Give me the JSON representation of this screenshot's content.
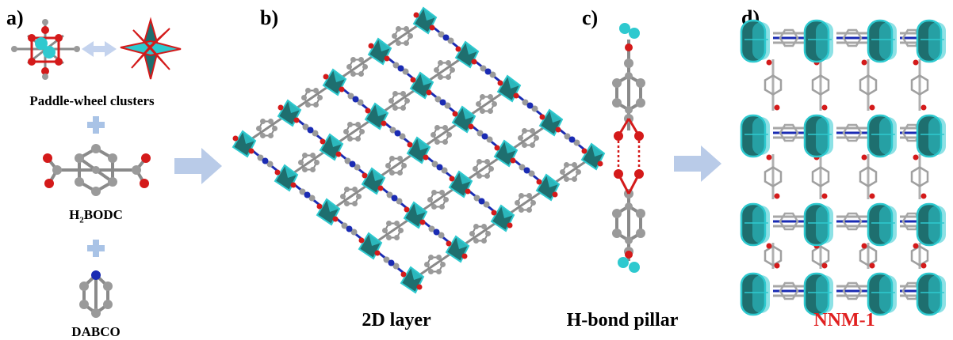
{
  "panels": {
    "a": {
      "label": "a)",
      "captions": {
        "clusters": "Paddle-wheel clusters",
        "linker_prefix": "H",
        "linker_sub": "2",
        "linker_suffix": "BODC",
        "pillar_ligand": "DABCO"
      }
    },
    "b": {
      "label": "b)",
      "caption": "2D layer"
    },
    "c": {
      "label": "c)",
      "caption": "H-bond pillar"
    },
    "d": {
      "label": "d)",
      "caption": "NNM-1"
    }
  },
  "colors": {
    "metal": "#2ec9cf",
    "metal_dark": "#176e73",
    "polyhedron": "#1e6f6f",
    "oxygen": "#d41a1a",
    "carbon": "#9a9a9a",
    "nitrogen": "#1a2bb3",
    "arrow": "#b9cbe8",
    "plus": "#a9c3e6",
    "hbond": "#d41a1a",
    "highlight_text": "#e02020"
  }
}
